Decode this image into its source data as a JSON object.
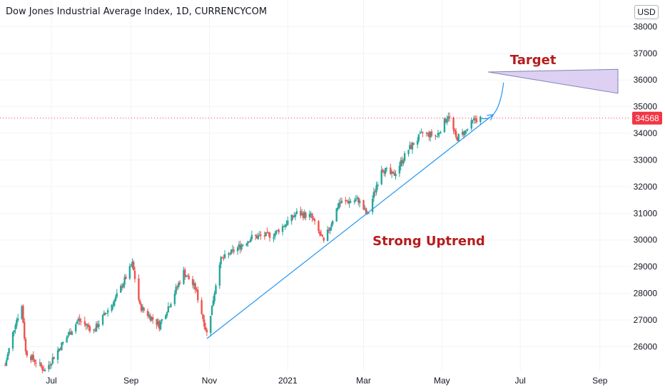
{
  "header": {
    "title": "Dow Jones Industrial Average Index, 1D, CURRENCYCOM",
    "currency": "USD"
  },
  "colors": {
    "up": "#26a69a",
    "down": "#ef5350",
    "trendline": "#2196f3",
    "annotation_text": "#b71c1c",
    "target_fill": "#d9c8f2",
    "price_label_bg": "#f23645"
  },
  "chart_data": {
    "type": "candlestick",
    "title": "Dow Jones Industrial Average Index, 1D, CURRENCYCOM",
    "ylim": [
      25100,
      39000
    ],
    "y_ticks": [
      26000,
      27000,
      28000,
      29000,
      30000,
      31000,
      32000,
      33000,
      34000,
      35000,
      36000,
      37000,
      38000
    ],
    "x_ticks": [
      {
        "label": "Jul",
        "date": "2020-07-01"
      },
      {
        "label": "Sep",
        "date": "2020-09-01"
      },
      {
        "label": "Nov",
        "date": "2020-11-01"
      },
      {
        "label": "2021",
        "date": "2021-01-01"
      },
      {
        "label": "Mar",
        "date": "2021-03-01"
      },
      {
        "label": "May",
        "date": "2021-05-01"
      },
      {
        "label": "Jul",
        "date": "2021-07-01"
      },
      {
        "label": "Sep",
        "date": "2021-09-01"
      }
    ],
    "xlim": [
      "2020-05-22",
      "2021-09-25"
    ],
    "last_price": 34568,
    "last_price_label": "34568",
    "trend_path": [
      [
        "2020-05-26",
        25300
      ],
      [
        "2020-06-03",
        26900
      ],
      [
        "2020-06-08",
        27500
      ],
      [
        "2020-06-11",
        25800
      ],
      [
        "2020-06-26",
        25100
      ],
      [
        "2020-07-08",
        26000
      ],
      [
        "2020-07-22",
        27000
      ],
      [
        "2020-08-03",
        26600
      ],
      [
        "2020-08-20",
        27800
      ],
      [
        "2020-09-02",
        29100
      ],
      [
        "2020-09-08",
        27500
      ],
      [
        "2020-09-23",
        26800
      ],
      [
        "2020-10-02",
        27700
      ],
      [
        "2020-10-12",
        28800
      ],
      [
        "2020-10-21",
        28200
      ],
      [
        "2020-10-30",
        26500
      ],
      [
        "2020-11-03",
        27500
      ],
      [
        "2020-11-09",
        29200
      ],
      [
        "2020-11-20",
        29600
      ],
      [
        "2020-12-04",
        30100
      ],
      [
        "2020-12-21",
        30200
      ],
      [
        "2021-01-08",
        31000
      ],
      [
        "2021-01-19",
        30900
      ],
      [
        "2021-01-29",
        29900
      ],
      [
        "2021-02-10",
        31400
      ],
      [
        "2021-02-25",
        31500
      ],
      [
        "2021-03-04",
        30900
      ],
      [
        "2021-03-15",
        32700
      ],
      [
        "2021-03-24",
        32400
      ],
      [
        "2021-04-05",
        33400
      ],
      [
        "2021-04-16",
        34000
      ],
      [
        "2021-04-27",
        33900
      ],
      [
        "2021-05-06",
        34700
      ],
      [
        "2021-05-12",
        33800
      ],
      [
        "2021-05-20",
        34100
      ],
      [
        "2021-05-26",
        34500
      ],
      [
        "2021-05-31",
        34568
      ]
    ],
    "trendline": {
      "start": [
        "2020-10-30",
        26300
      ],
      "end": [
        "2021-06-10",
        34700
      ]
    },
    "projection": [
      [
        "2021-05-31",
        34568
      ],
      [
        "2021-06-08",
        34450
      ],
      [
        "2021-06-15",
        34750
      ],
      [
        "2021-06-18",
        35900
      ]
    ],
    "target_zone": [
      [
        "2021-06-06",
        36300
      ],
      [
        "2021-09-15",
        36400
      ],
      [
        "2021-09-15",
        35500
      ]
    ],
    "annotations": [
      {
        "text": "Target",
        "at": [
          "2021-06-23",
          36600
        ]
      },
      {
        "text": "Strong Uptrend",
        "at": [
          "2021-03-08",
          29800
        ]
      }
    ]
  }
}
